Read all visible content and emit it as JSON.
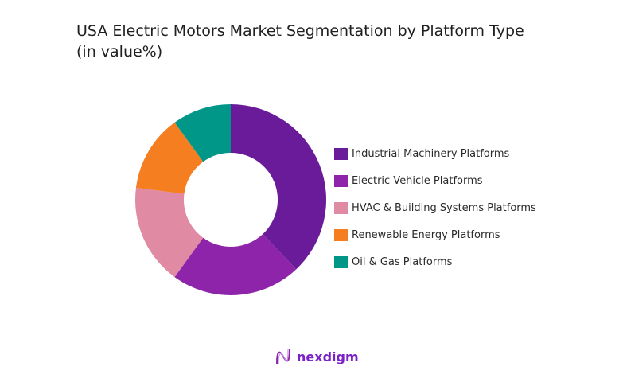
{
  "chart_data": {
    "type": "pie",
    "donut": true,
    "title": "USA Electric Motors Market Segmentation by Platform Type",
    "subtitle": "(in value%)",
    "categories": [
      "Industrial Machinery Platforms",
      "Electric Vehicle Platforms",
      "HVAC & Building Systems Platforms",
      "Renewable Energy Platforms",
      "Oil & Gas Platforms"
    ],
    "values": [
      38,
      22,
      17,
      13,
      10
    ],
    "colors": [
      "#6a1b9a",
      "#8e24aa",
      "#e08aa4",
      "#f57f20",
      "#009688"
    ],
    "legend": "right"
  },
  "brand": {
    "name": "nexdigm",
    "color": "#7a22c8"
  }
}
